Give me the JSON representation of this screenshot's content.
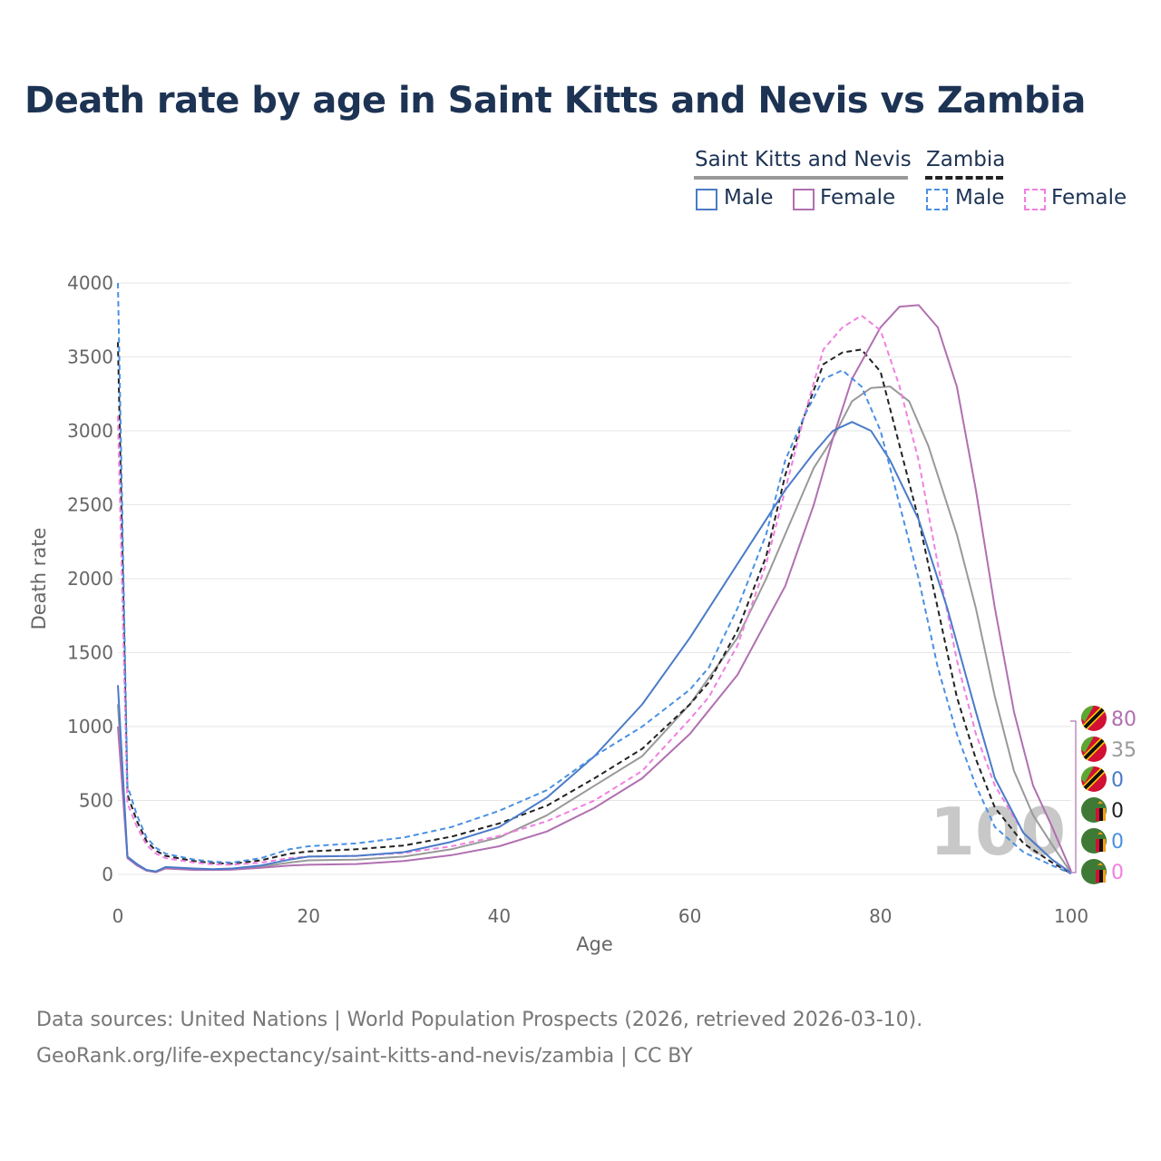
{
  "title": "Death rate by age in Saint Kitts and Nevis vs Zambia",
  "legend": {
    "country1": "Saint Kitts and Nevis",
    "country2": "Zambia",
    "male": "Male",
    "female": "Female"
  },
  "footer": {
    "line1": "Data sources: United Nations | World Population Prospects (2026, retrieved 2026-03-10).",
    "line2": "GeoRank.org/life-expectancy/saint-kitts-and-nevis/zambia | CC BY"
  },
  "colors": {
    "kn_male": "#4a7bc8",
    "kn_female": "#b070b0",
    "kn_total": "#999999",
    "zm_male": "#4a90e2",
    "zm_female": "#f080e0",
    "zm_total": "#222222",
    "title": "#1d3354"
  },
  "chart_data": {
    "type": "line",
    "title": "Death rate by age in Saint Kitts and Nevis vs Zambia",
    "xlabel": "Age",
    "ylabel": "Death rate",
    "xlim": [
      0,
      100
    ],
    "ylim": [
      0,
      4000
    ],
    "xticks": [
      0,
      20,
      40,
      60,
      80,
      100
    ],
    "yticks": [
      0,
      500,
      1000,
      1500,
      2000,
      2500,
      3000,
      3500,
      4000
    ],
    "watermark": "100",
    "series": [
      {
        "name": "Saint Kitts and Nevis Male",
        "id": "kn_male",
        "style": "solid",
        "points": [
          [
            0,
            1280
          ],
          [
            1,
            120
          ],
          [
            2,
            70
          ],
          [
            3,
            30
          ],
          [
            4,
            20
          ],
          [
            5,
            50
          ],
          [
            8,
            40
          ],
          [
            10,
            35
          ],
          [
            12,
            40
          ],
          [
            15,
            60
          ],
          [
            18,
            100
          ],
          [
            20,
            120
          ],
          [
            25,
            125
          ],
          [
            30,
            150
          ],
          [
            35,
            220
          ],
          [
            40,
            320
          ],
          [
            45,
            520
          ],
          [
            50,
            800
          ],
          [
            55,
            1150
          ],
          [
            60,
            1600
          ],
          [
            65,
            2100
          ],
          [
            70,
            2600
          ],
          [
            73,
            2850
          ],
          [
            75,
            3000
          ],
          [
            77,
            3060
          ],
          [
            79,
            3000
          ],
          [
            81,
            2800
          ],
          [
            84,
            2400
          ],
          [
            87,
            1800
          ],
          [
            90,
            1100
          ],
          [
            92,
            650
          ],
          [
            95,
            280
          ],
          [
            98,
            100
          ],
          [
            100,
            10
          ]
        ]
      },
      {
        "name": "Saint Kitts and Nevis Female",
        "id": "kn_female",
        "style": "solid",
        "points": [
          [
            0,
            1000
          ],
          [
            1,
            110
          ],
          [
            2,
            60
          ],
          [
            3,
            25
          ],
          [
            4,
            15
          ],
          [
            5,
            40
          ],
          [
            8,
            30
          ],
          [
            10,
            30
          ],
          [
            12,
            32
          ],
          [
            15,
            45
          ],
          [
            18,
            60
          ],
          [
            20,
            65
          ],
          [
            25,
            70
          ],
          [
            30,
            90
          ],
          [
            35,
            130
          ],
          [
            40,
            190
          ],
          [
            45,
            290
          ],
          [
            50,
            450
          ],
          [
            55,
            650
          ],
          [
            60,
            950
          ],
          [
            65,
            1350
          ],
          [
            70,
            1950
          ],
          [
            73,
            2500
          ],
          [
            75,
            2950
          ],
          [
            77,
            3350
          ],
          [
            80,
            3700
          ],
          [
            82,
            3840
          ],
          [
            84,
            3850
          ],
          [
            86,
            3700
          ],
          [
            88,
            3300
          ],
          [
            90,
            2600
          ],
          [
            92,
            1800
          ],
          [
            94,
            1100
          ],
          [
            96,
            600
          ],
          [
            98,
            320
          ],
          [
            100,
            20
          ]
        ]
      },
      {
        "name": "Saint Kitts and Nevis Total",
        "id": "kn_total",
        "style": "solid",
        "points": [
          [
            0,
            1150
          ],
          [
            1,
            115
          ],
          [
            2,
            65
          ],
          [
            3,
            28
          ],
          [
            4,
            18
          ],
          [
            5,
            45
          ],
          [
            8,
            35
          ],
          [
            10,
            32
          ],
          [
            12,
            36
          ],
          [
            15,
            52
          ],
          [
            18,
            80
          ],
          [
            20,
            95
          ],
          [
            25,
            100
          ],
          [
            30,
            120
          ],
          [
            35,
            170
          ],
          [
            40,
            250
          ],
          [
            45,
            400
          ],
          [
            50,
            600
          ],
          [
            55,
            800
          ],
          [
            60,
            1150
          ],
          [
            65,
            1600
          ],
          [
            68,
            2000
          ],
          [
            71,
            2450
          ],
          [
            73,
            2750
          ],
          [
            75,
            2950
          ],
          [
            77,
            3200
          ],
          [
            79,
            3290
          ],
          [
            81,
            3300
          ],
          [
            83,
            3200
          ],
          [
            85,
            2900
          ],
          [
            88,
            2300
          ],
          [
            90,
            1800
          ],
          [
            92,
            1200
          ],
          [
            94,
            700
          ],
          [
            96,
            400
          ],
          [
            98,
            200
          ],
          [
            100,
            10
          ]
        ]
      },
      {
        "name": "Zambia Male",
        "id": "zm_male",
        "style": "dashed",
        "points": [
          [
            0,
            4000
          ],
          [
            1,
            600
          ],
          [
            2,
            400
          ],
          [
            3,
            250
          ],
          [
            4,
            180
          ],
          [
            5,
            140
          ],
          [
            8,
            100
          ],
          [
            10,
            85
          ],
          [
            12,
            80
          ],
          [
            15,
            110
          ],
          [
            18,
            170
          ],
          [
            20,
            190
          ],
          [
            25,
            210
          ],
          [
            30,
            250
          ],
          [
            35,
            320
          ],
          [
            40,
            430
          ],
          [
            45,
            570
          ],
          [
            50,
            800
          ],
          [
            55,
            1000
          ],
          [
            60,
            1250
          ],
          [
            62,
            1400
          ],
          [
            65,
            1800
          ],
          [
            68,
            2300
          ],
          [
            70,
            2800
          ],
          [
            72,
            3100
          ],
          [
            74,
            3350
          ],
          [
            76,
            3410
          ],
          [
            78,
            3300
          ],
          [
            80,
            3000
          ],
          [
            82,
            2500
          ],
          [
            84,
            2000
          ],
          [
            86,
            1400
          ],
          [
            88,
            950
          ],
          [
            90,
            600
          ],
          [
            92,
            320
          ],
          [
            95,
            150
          ],
          [
            98,
            60
          ],
          [
            100,
            5
          ]
        ]
      },
      {
        "name": "Zambia Female",
        "id": "zm_female",
        "style": "dashed",
        "points": [
          [
            0,
            3100
          ],
          [
            1,
            480
          ],
          [
            2,
            320
          ],
          [
            3,
            200
          ],
          [
            4,
            140
          ],
          [
            5,
            110
          ],
          [
            8,
            80
          ],
          [
            10,
            68
          ],
          [
            12,
            65
          ],
          [
            15,
            80
          ],
          [
            18,
            110
          ],
          [
            20,
            120
          ],
          [
            25,
            125
          ],
          [
            30,
            145
          ],
          [
            35,
            190
          ],
          [
            40,
            260
          ],
          [
            45,
            360
          ],
          [
            50,
            500
          ],
          [
            55,
            700
          ],
          [
            60,
            1050
          ],
          [
            62,
            1200
          ],
          [
            65,
            1550
          ],
          [
            68,
            2100
          ],
          [
            70,
            2600
          ],
          [
            72,
            3100
          ],
          [
            74,
            3550
          ],
          [
            76,
            3700
          ],
          [
            78,
            3780
          ],
          [
            80,
            3680
          ],
          [
            82,
            3300
          ],
          [
            84,
            2800
          ],
          [
            86,
            2100
          ],
          [
            88,
            1450
          ],
          [
            90,
            950
          ],
          [
            92,
            600
          ],
          [
            95,
            280
          ],
          [
            98,
            100
          ],
          [
            100,
            5
          ]
        ]
      },
      {
        "name": "Zambia Total",
        "id": "zm_total",
        "style": "dashed",
        "points": [
          [
            0,
            3600
          ],
          [
            1,
            540
          ],
          [
            2,
            360
          ],
          [
            3,
            225
          ],
          [
            4,
            160
          ],
          [
            5,
            125
          ],
          [
            8,
            90
          ],
          [
            10,
            76
          ],
          [
            12,
            72
          ],
          [
            15,
            95
          ],
          [
            18,
            140
          ],
          [
            20,
            155
          ],
          [
            25,
            170
          ],
          [
            30,
            195
          ],
          [
            35,
            255
          ],
          [
            40,
            345
          ],
          [
            45,
            465
          ],
          [
            50,
            650
          ],
          [
            55,
            850
          ],
          [
            60,
            1150
          ],
          [
            62,
            1300
          ],
          [
            65,
            1650
          ],
          [
            68,
            2150
          ],
          [
            70,
            2700
          ],
          [
            72,
            3100
          ],
          [
            74,
            3450
          ],
          [
            76,
            3530
          ],
          [
            78,
            3550
          ],
          [
            80,
            3400
          ],
          [
            82,
            2900
          ],
          [
            84,
            2400
          ],
          [
            86,
            1800
          ],
          [
            88,
            1200
          ],
          [
            90,
            780
          ],
          [
            92,
            450
          ],
          [
            95,
            210
          ],
          [
            98,
            80
          ],
          [
            100,
            5
          ]
        ]
      }
    ],
    "end_labels": [
      {
        "flag": "Saint Kitts and Nevis",
        "value": "80",
        "series": "kn_female"
      },
      {
        "flag": "Saint Kitts and Nevis",
        "value": "35",
        "series": "kn_total"
      },
      {
        "flag": "Saint Kitts and Nevis",
        "value": "0",
        "series": "kn_male"
      },
      {
        "flag": "Zambia",
        "value": "0",
        "series": "zm_total"
      },
      {
        "flag": "Zambia",
        "value": "0",
        "series": "zm_male"
      },
      {
        "flag": "Zambia",
        "value": "0",
        "series": "zm_female"
      }
    ]
  }
}
